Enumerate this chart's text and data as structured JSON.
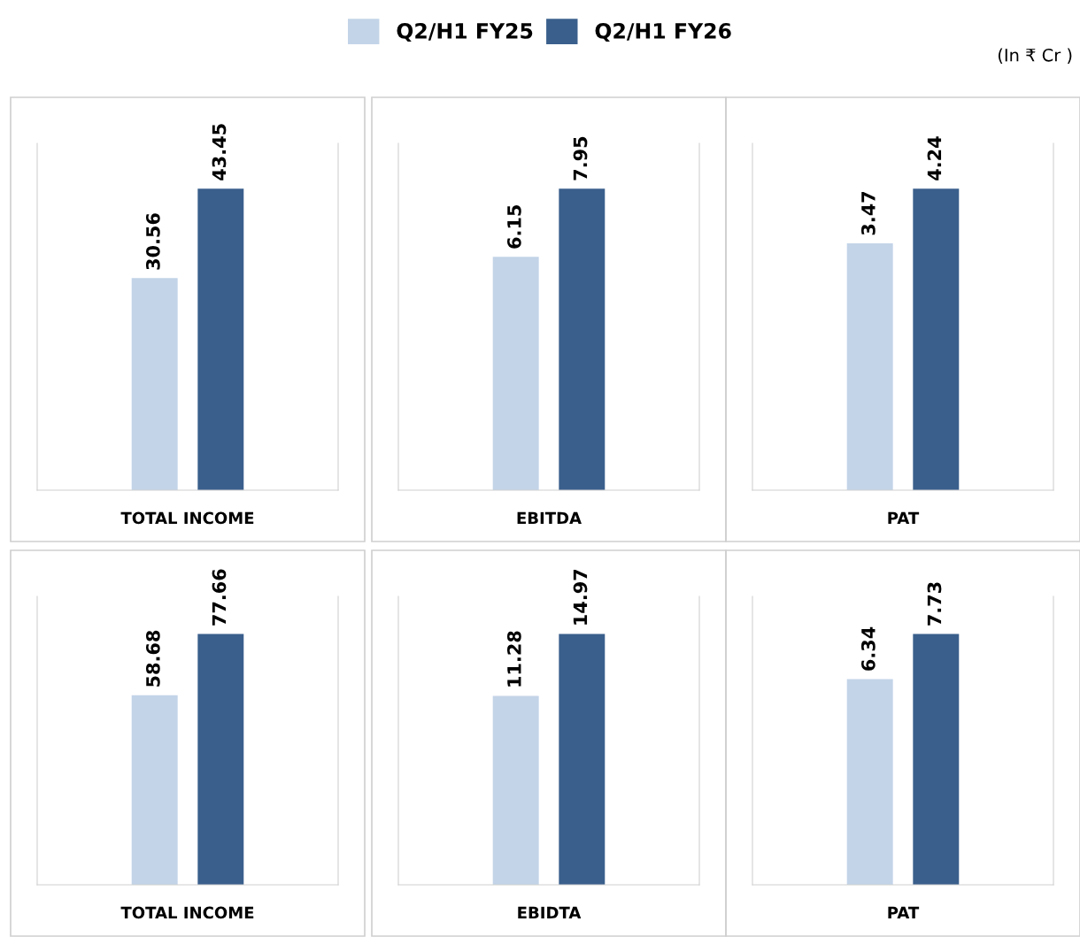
{
  "chart_data": [
    {
      "type": "bar",
      "xlabel": "TOTAL INCOME",
      "categories": [
        null
      ],
      "legend": "top",
      "data_labels": true,
      "annotations": [
        "(In ₹ Cr )"
      ],
      "series": [
        {
          "name": "Q2/H1 FY25",
          "color": "#c3d4e8",
          "values": [
            30.56
          ]
        },
        {
          "name": "Q2/H1 FY26",
          "color": "#3a5f8c",
          "values": [
            43.45
          ]
        }
      ]
    },
    {
      "type": "bar",
      "xlabel": "EBITDA",
      "categories": [
        null
      ],
      "data_labels": true,
      "series": [
        {
          "color": "#c3d4e8",
          "values": [
            6.15
          ]
        },
        {
          "color": "#3a5f8c",
          "values": [
            7.95
          ]
        }
      ]
    },
    {
      "type": "bar",
      "xlabel": "PAT",
      "categories": [
        null
      ],
      "data_labels": true,
      "series": [
        {
          "color": "#c3d4e8",
          "values": [
            3.47
          ]
        },
        {
          "color": "#3a5f8c",
          "values": [
            4.24
          ]
        }
      ]
    },
    {
      "type": "bar",
      "xlabel": "TOTAL INCOME",
      "categories": [
        null
      ],
      "data_labels": true,
      "series": [
        {
          "color": "#c3d4e8",
          "values": [
            58.68
          ]
        },
        {
          "color": "#3a5f8c",
          "values": [
            77.66
          ]
        }
      ]
    },
    {
      "type": "bar",
      "xlabel": "EBIDTA",
      "categories": [
        null
      ],
      "data_labels": true,
      "series": [
        {
          "color": "#c3d4e8",
          "values": [
            11.28
          ]
        },
        {
          "color": "#3a5f8c",
          "values": [
            14.97
          ]
        }
      ]
    },
    {
      "type": "bar",
      "xlabel": "PAT",
      "categories": [
        null
      ],
      "data_labels": true,
      "series": [
        {
          "color": "#c3d4e8",
          "values": [
            6.34
          ]
        },
        {
          "color": "#3a5f8c",
          "values": [
            7.73
          ]
        }
      ]
    }
  ]
}
